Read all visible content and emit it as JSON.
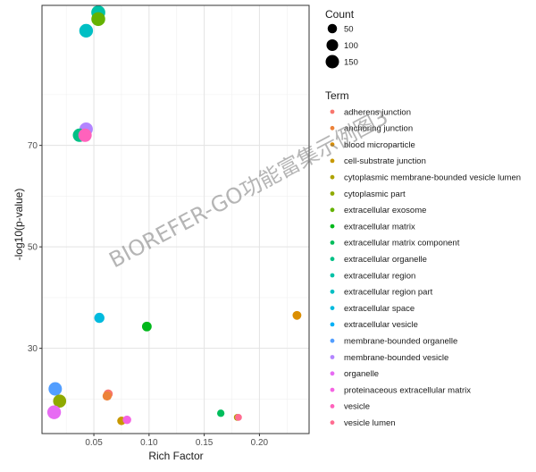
{
  "chart_data": {
    "type": "scatter",
    "xlabel": "Rich Factor",
    "ylabel": "-log10(p-value)",
    "xlim": [
      0.003,
      0.245
    ],
    "ylim": [
      13.2,
      97.6
    ],
    "xticks": [
      0.05,
      0.1,
      0.15,
      0.2
    ],
    "xtick_labels": [
      "0.05",
      "0.10",
      "0.15",
      "0.20"
    ],
    "yticks": [
      30,
      50,
      70
    ],
    "ytick_labels": [
      "30",
      "50",
      "70"
    ],
    "grid": true,
    "legend_position": "right",
    "size_legend": {
      "title": "Count",
      "entries": [
        {
          "label": "50",
          "value": 50
        },
        {
          "label": "100",
          "value": 100
        },
        {
          "label": "150",
          "value": 150
        }
      ]
    },
    "color_legend": {
      "title": "Term",
      "entries": [
        {
          "label": "adherens junction",
          "color": "#F8766D"
        },
        {
          "label": "anchoring junction",
          "color": "#EC8239"
        },
        {
          "label": "blood microparticle",
          "color": "#DB8E00"
        },
        {
          "label": "cell-substrate junction",
          "color": "#C79800"
        },
        {
          "label": "cytoplasmic membrane-bounded vesicle lumen",
          "color": "#AEA200"
        },
        {
          "label": "cytoplasmic part",
          "color": "#8FAA00"
        },
        {
          "label": "extracellular exosome",
          "color": "#64B200"
        },
        {
          "label": "extracellular matrix",
          "color": "#00B81B"
        },
        {
          "label": "extracellular matrix component",
          "color": "#00BD5C"
        },
        {
          "label": "extracellular organelle",
          "color": "#00C085"
        },
        {
          "label": "extracellular region",
          "color": "#00C1A7"
        },
        {
          "label": "extracellular region part",
          "color": "#00BFC4"
        },
        {
          "label": "extracellular space",
          "color": "#00BADE"
        },
        {
          "label": "extracellular vesicle",
          "color": "#00B0F6"
        },
        {
          "label": "membrane-bounded organelle",
          "color": "#529EFF"
        },
        {
          "label": "membrane-bounded vesicle",
          "color": "#B385FF"
        },
        {
          "label": "organelle",
          "color": "#E76BF3"
        },
        {
          "label": "proteinaceous extracellular matrix",
          "color": "#F564E3"
        },
        {
          "label": "vesicle",
          "color": "#FF62BC"
        },
        {
          "label": "vesicle lumen",
          "color": "#FF6C91"
        }
      ]
    },
    "points": [
      {
        "term": "extracellular region",
        "x": 0.054,
        "y": 96.2,
        "count": 170,
        "color": "#00C1A7"
      },
      {
        "term": "extracellular exosome",
        "x": 0.054,
        "y": 94.9,
        "count": 165,
        "color": "#64B200"
      },
      {
        "term": "extracellular region part",
        "x": 0.043,
        "y": 92.6,
        "count": 160,
        "color": "#00BFC4"
      },
      {
        "term": "membrane-bounded vesicle",
        "x": 0.043,
        "y": 73.2,
        "count": 150,
        "color": "#B385FF"
      },
      {
        "term": "extracellular organelle",
        "x": 0.037,
        "y": 72.0,
        "count": 150,
        "color": "#00C085"
      },
      {
        "term": "vesicle",
        "x": 0.042,
        "y": 72.0,
        "count": 150,
        "color": "#FF62BC"
      },
      {
        "term": "extracellular space",
        "x": 0.055,
        "y": 36.0,
        "count": 65,
        "color": "#00BADE"
      },
      {
        "term": "extracellular matrix",
        "x": 0.098,
        "y": 34.3,
        "count": 55,
        "color": "#00B81B"
      },
      {
        "term": "blood microparticle",
        "x": 0.234,
        "y": 36.5,
        "count": 40,
        "color": "#DB8E00"
      },
      {
        "term": "membrane-bounded organelle",
        "x": 0.015,
        "y": 22.0,
        "count": 150,
        "color": "#529EFF"
      },
      {
        "term": "cytoplasmic part",
        "x": 0.019,
        "y": 19.6,
        "count": 140,
        "color": "#8FAA00"
      },
      {
        "term": "organelle",
        "x": 0.014,
        "y": 17.4,
        "count": 160,
        "color": "#E76BF3"
      },
      {
        "term": "adherens junction",
        "x": 0.063,
        "y": 21.0,
        "count": 45,
        "color": "#F8766D"
      },
      {
        "term": "anchoring junction",
        "x": 0.062,
        "y": 20.6,
        "count": 45,
        "color": "#EC8239"
      },
      {
        "term": "cell-substrate junction",
        "x": 0.075,
        "y": 15.7,
        "count": 35,
        "color": "#C79800"
      },
      {
        "term": "proteinaceous extracellular matrix",
        "x": 0.08,
        "y": 15.9,
        "count": 35,
        "color": "#F564E3"
      },
      {
        "term": "extracellular matrix component",
        "x": 0.165,
        "y": 17.2,
        "count": 20,
        "color": "#00BD5C"
      },
      {
        "term": "cytoplasmic membrane-bounded vesicle lumen",
        "x": 0.18,
        "y": 16.4,
        "count": 15,
        "color": "#AEA200"
      },
      {
        "term": "vesicle lumen",
        "x": 0.181,
        "y": 16.4,
        "count": 15,
        "color": "#FF6C91"
      }
    ]
  },
  "watermark": {
    "text": "BIOREFER-GO功能富集示例图3"
  }
}
